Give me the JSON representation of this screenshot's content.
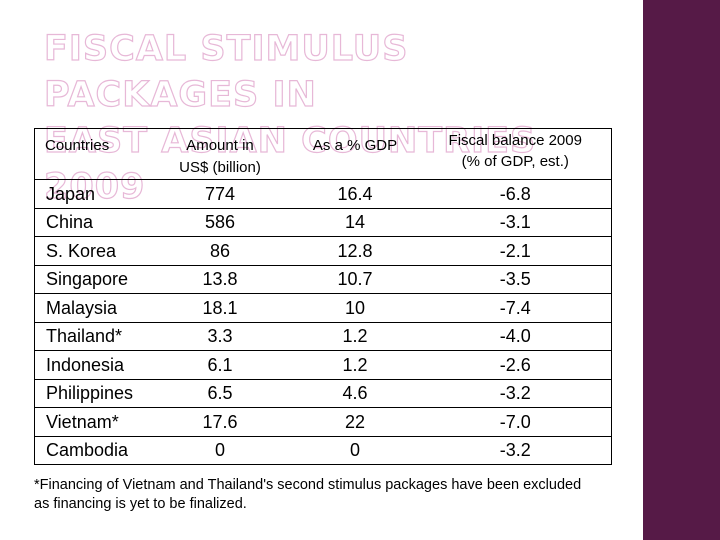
{
  "slide": {
    "title_line1": "FISCAL STIMULUS PACKAGES IN",
    "title_line2": "EAST ASIAN COUNTRIES 2009",
    "footnote": "*Financing of Vietnam and Thailand's second stimulus packages have been excluded as financing is yet to be finalized."
  },
  "table": {
    "headers": {
      "country": "Countries",
      "amount_line1": "Amount in",
      "amount_line2": "US$ (billion)",
      "pct_gdp": "As a % GDP",
      "fiscal_line1": "Fiscal balance 2009",
      "fiscal_line2": "(% of GDP, est.)"
    },
    "rows": [
      {
        "country": "Japan",
        "amount": "774",
        "pct": "16.4",
        "fiscal": "-6.8"
      },
      {
        "country": "China",
        "amount": "586",
        "pct": "14",
        "fiscal": "-3.1"
      },
      {
        "country": "S. Korea",
        "amount": "86",
        "pct": "12.8",
        "fiscal": "-2.1"
      },
      {
        "country": "Singapore",
        "amount": "13.8",
        "pct": "10.7",
        "fiscal": "-3.5"
      },
      {
        "country": "Malaysia",
        "amount": "18.1",
        "pct": "10",
        "fiscal": "-7.4"
      },
      {
        "country": "Thailand*",
        "amount": "3.3",
        "pct": "1.2",
        "fiscal": "-4.0"
      },
      {
        "country": "Indonesia",
        "amount": "6.1",
        "pct": "1.2",
        "fiscal": "-2.6"
      },
      {
        "country": "Philippines",
        "amount": "6.5",
        "pct": "4.6",
        "fiscal": "-3.2"
      },
      {
        "country": "Vietnam*",
        "amount": "17.6",
        "pct": "22",
        "fiscal": "-7.0"
      },
      {
        "country": "Cambodia",
        "amount": "0",
        "pct": "0",
        "fiscal": "-3.2"
      }
    ]
  },
  "colors": {
    "sidebar": "#561a47",
    "title_outline": "#e7b8d7"
  }
}
